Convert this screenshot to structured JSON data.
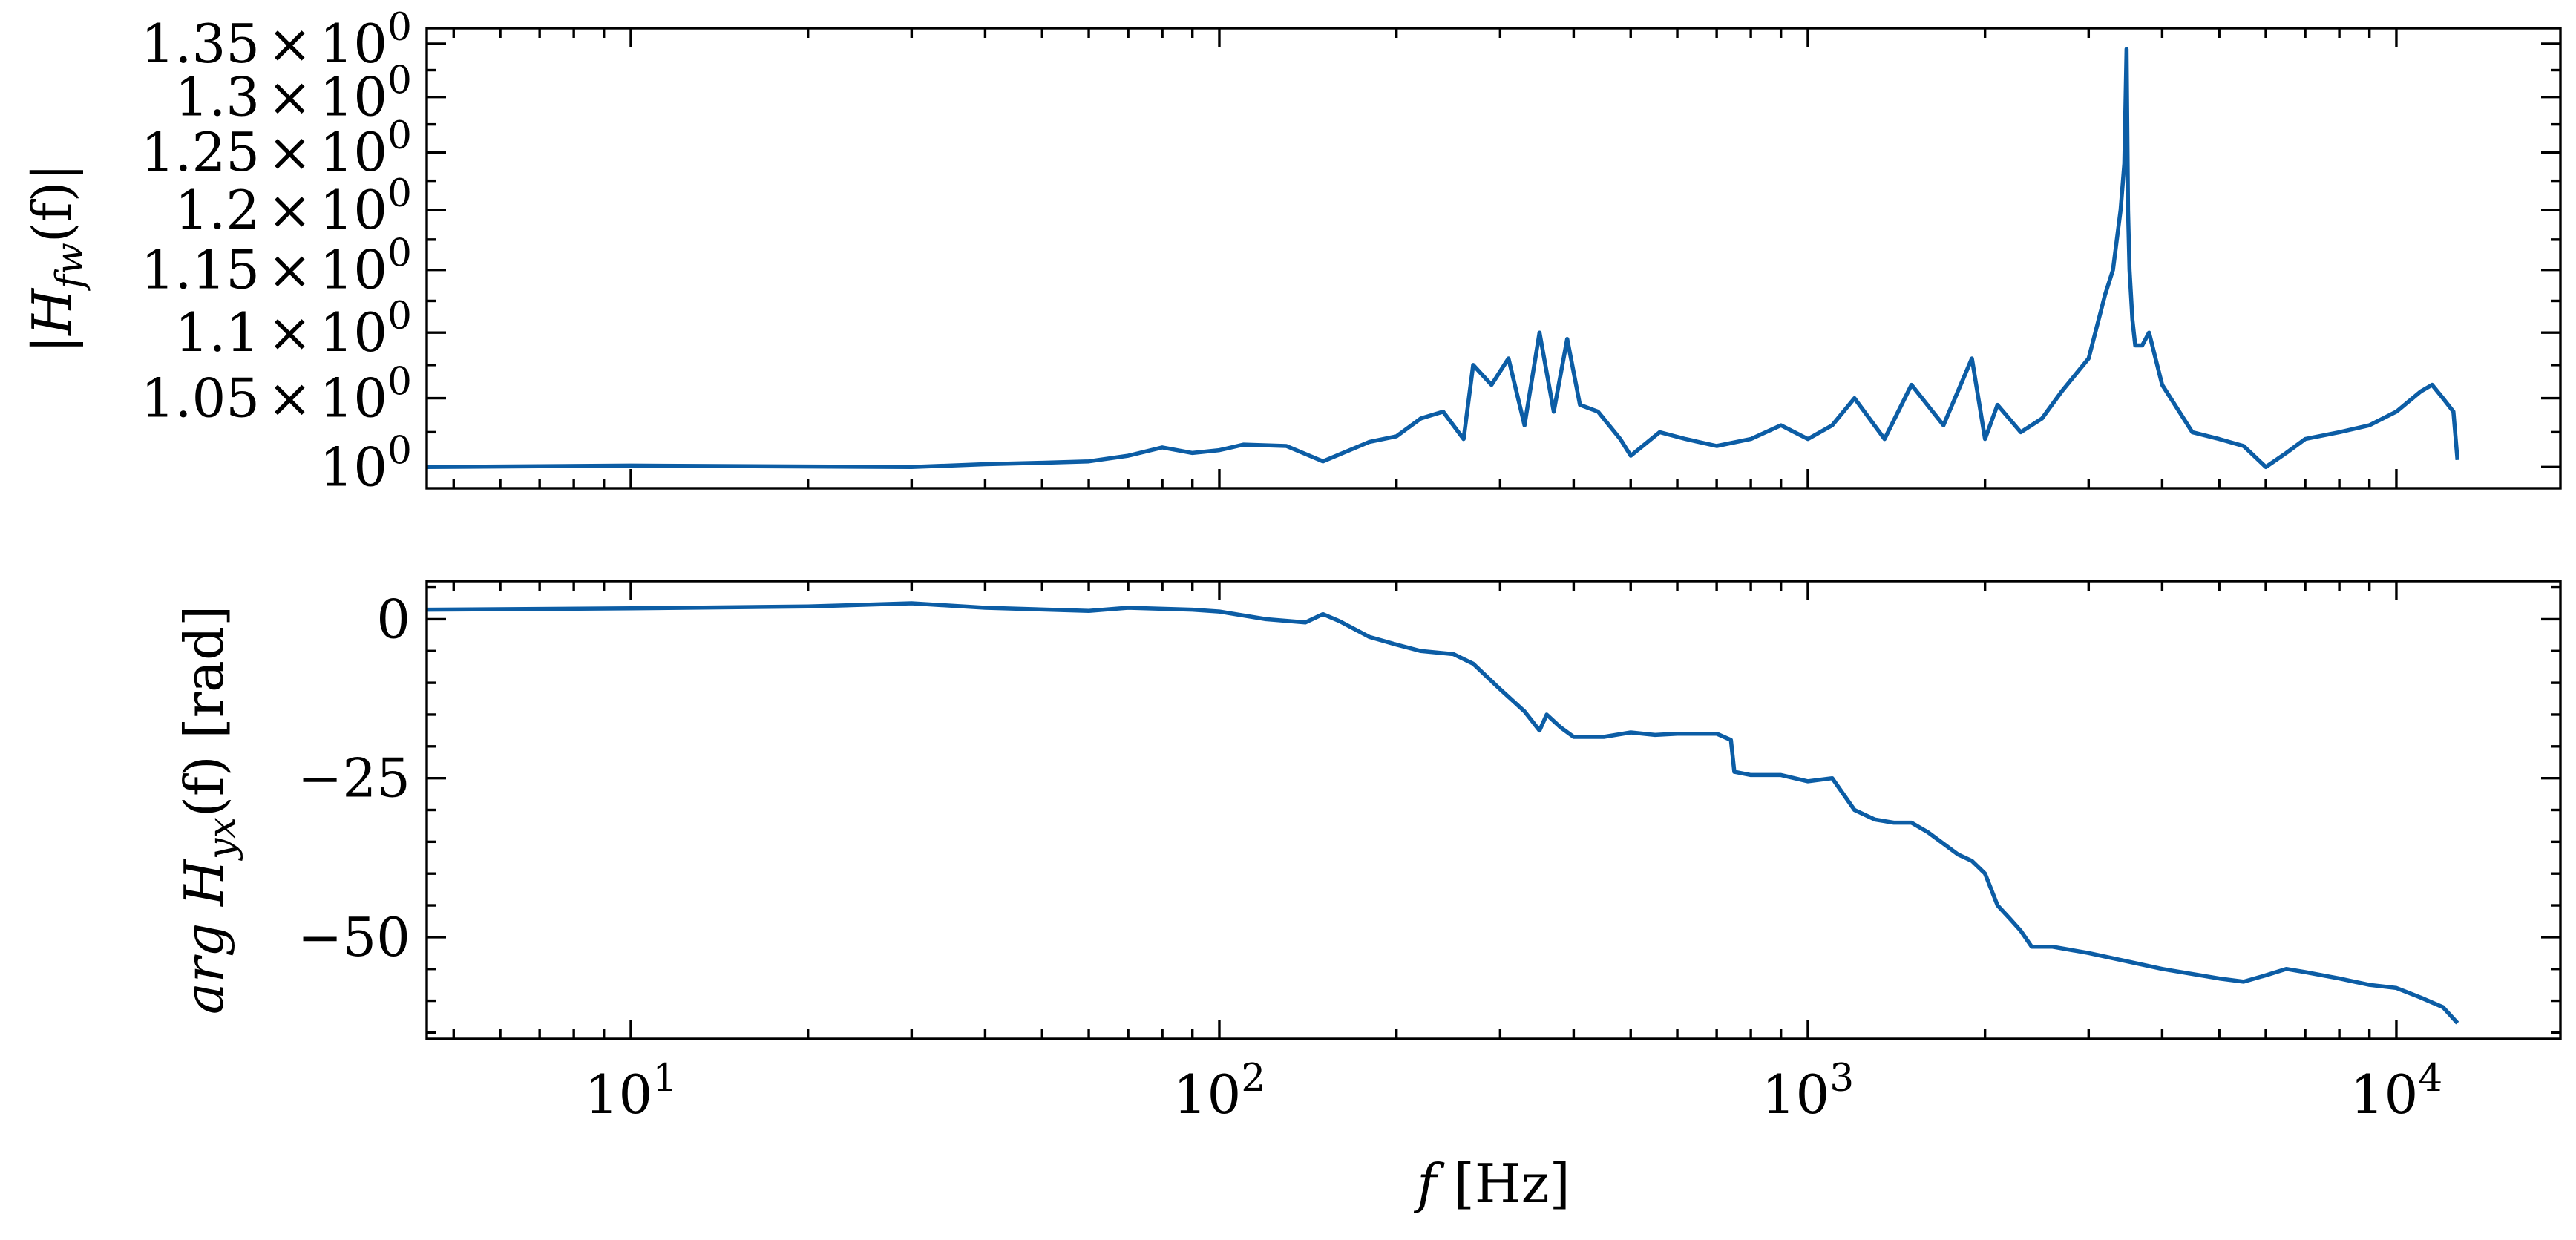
{
  "chart_data": [
    {
      "type": "line",
      "panel": "top",
      "ylabel_parts": {
        "pre": "|H",
        "sub": "fw",
        "post": "(f)|"
      },
      "xscale": "log",
      "xlim": [
        4.5,
        19000
      ],
      "ylim": [
        0.985,
        1.365
      ],
      "yscale": "log",
      "ytick_values": [
        1.0,
        1.05,
        1.1,
        1.15,
        1.2,
        1.25,
        1.3,
        1.35
      ],
      "ytick_mantissas": [
        "",
        "1.05",
        "1.1",
        "1.15",
        "1.2",
        "1.25",
        "1.3",
        "1.35"
      ],
      "ytick_base": "10",
      "ytick_exponent": "0",
      "ytick_times": "×",
      "color": "#0C5DA5",
      "series": [
        {
          "x": [
            4.5,
            10,
            30,
            40,
            50,
            60,
            70,
            80,
            90,
            100,
            110,
            130,
            150,
            180,
            200,
            220,
            240,
            260,
            270,
            290,
            310,
            330,
            350,
            370,
            390,
            410,
            440,
            480,
            500,
            560,
            620,
            700,
            800,
            900,
            1000,
            1100,
            1200,
            1350,
            1500,
            1700,
            1900,
            2000,
            2100,
            2300,
            2500,
            2700,
            3000,
            3200,
            3300,
            3400,
            3450,
            3480,
            3500,
            3520,
            3560,
            3600,
            3700,
            3800,
            4000,
            4500,
            5000,
            5500,
            6000,
            6500,
            7000,
            8000,
            9000,
            10000,
            11000,
            11500,
            12000,
            12500,
            12700
          ],
          "y": [
            1.0,
            1.001,
            1.0,
            1.002,
            1.003,
            1.004,
            1.008,
            1.014,
            1.01,
            1.012,
            1.016,
            1.015,
            1.004,
            1.018,
            1.022,
            1.035,
            1.04,
            1.02,
            1.075,
            1.06,
            1.08,
            1.03,
            1.1,
            1.04,
            1.095,
            1.045,
            1.04,
            1.02,
            1.008,
            1.025,
            1.02,
            1.015,
            1.02,
            1.03,
            1.02,
            1.03,
            1.05,
            1.02,
            1.06,
            1.03,
            1.08,
            1.02,
            1.045,
            1.025,
            1.035,
            1.055,
            1.08,
            1.13,
            1.15,
            1.2,
            1.24,
            1.345,
            1.2,
            1.15,
            1.11,
            1.09,
            1.09,
            1.1,
            1.06,
            1.025,
            1.02,
            1.015,
            1.0,
            1.01,
            1.02,
            1.025,
            1.03,
            1.04,
            1.055,
            1.06,
            1.05,
            1.04,
            1.005
          ]
        }
      ]
    },
    {
      "type": "line",
      "panel": "bottom",
      "ylabel_parts": {
        "pre": "arg H",
        "sub": "yx",
        "post": "(f) [rad]"
      },
      "xlabel_parts": {
        "pre": "f",
        "post": " [Hz]"
      },
      "xscale": "log",
      "xlim": [
        4.5,
        19000
      ],
      "ylim": [
        -66,
        6
      ],
      "yticks": [
        0,
        -25,
        -50
      ],
      "ytick_labels": [
        "0",
        "−25",
        "−50"
      ],
      "xticks": [
        10,
        100,
        1000,
        10000
      ],
      "xtick_bases": [
        "10",
        "10",
        "10",
        "10"
      ],
      "xtick_exponents": [
        "1",
        "2",
        "3",
        "4"
      ],
      "color": "#0C5DA5",
      "series": [
        {
          "x": [
            4.5,
            10,
            20,
            30,
            40,
            60,
            70,
            90,
            100,
            120,
            140,
            150,
            160,
            180,
            200,
            220,
            250,
            270,
            300,
            330,
            350,
            360,
            380,
            400,
            450,
            500,
            550,
            600,
            700,
            740,
            750,
            800,
            900,
            1000,
            1100,
            1200,
            1300,
            1400,
            1500,
            1600,
            1800,
            1900,
            2000,
            2100,
            2200,
            2300,
            2400,
            2600,
            3000,
            4000,
            5000,
            5500,
            6000,
            6500,
            7000,
            8000,
            9000,
            10000,
            11000,
            12000,
            12700
          ],
          "y": [
            1.5,
            1.7,
            2.0,
            2.5,
            1.8,
            1.3,
            1.8,
            1.5,
            1.2,
            0.0,
            -0.5,
            0.8,
            -0.3,
            -2.8,
            -4.0,
            -5.0,
            -5.5,
            -7.0,
            -11.0,
            -14.5,
            -17.5,
            -15.0,
            -17.0,
            -18.5,
            -18.5,
            -17.8,
            -18.2,
            -18.0,
            -18.0,
            -19.0,
            -24.0,
            -24.5,
            -24.5,
            -25.5,
            -25.0,
            -30.0,
            -31.5,
            -32.0,
            -32.0,
            -33.5,
            -37.0,
            -38.0,
            -40.0,
            -45.0,
            -47.0,
            -49.0,
            -51.5,
            -51.5,
            -52.5,
            -55.0,
            -56.5,
            -57.0,
            -56.0,
            -55.0,
            -55.5,
            -56.5,
            -57.5,
            -58.0,
            -59.5,
            -61.0,
            -63.5
          ]
        }
      ]
    }
  ]
}
